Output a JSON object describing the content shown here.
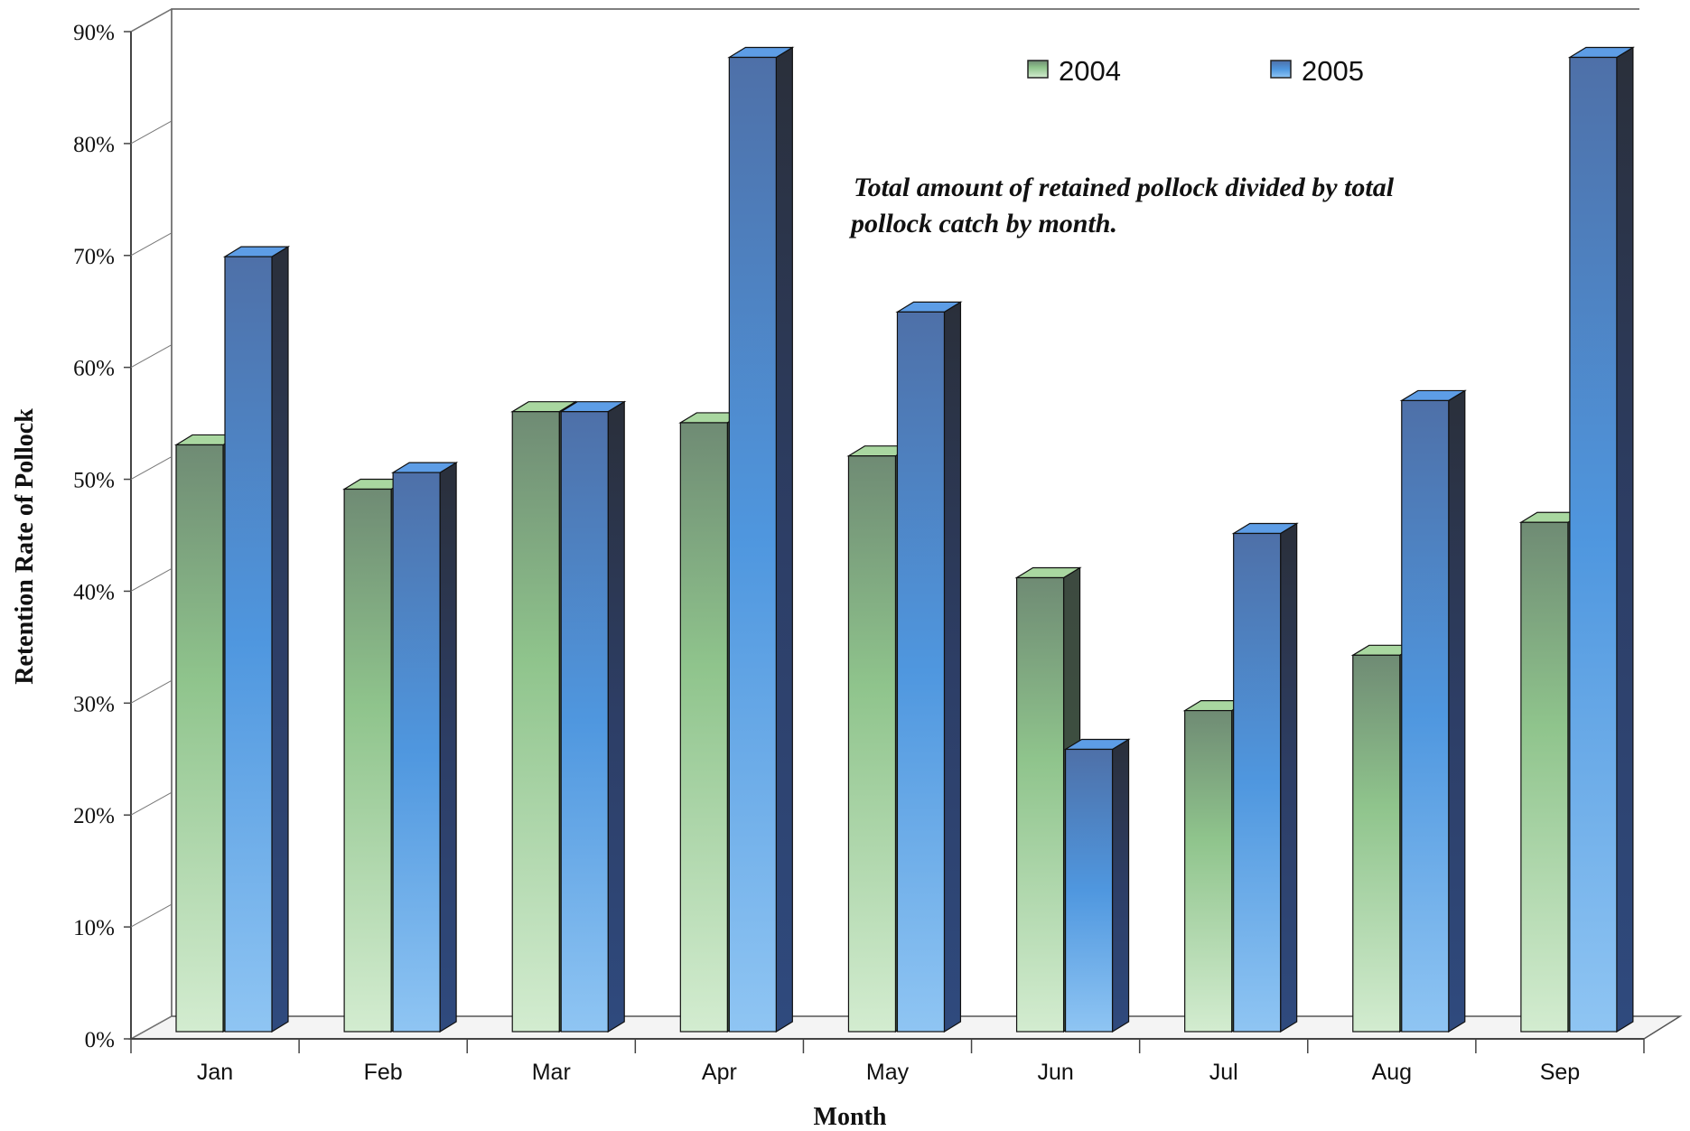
{
  "chart_data": {
    "type": "bar",
    "categories": [
      "Jan",
      "Feb",
      "Mar",
      "Apr",
      "May",
      "Jun",
      "Jul",
      "Aug",
      "Sep"
    ],
    "series": [
      {
        "name": "2004",
        "values": [
          53,
          49,
          56,
          55,
          52,
          41,
          29,
          34,
          46
        ]
      },
      {
        "name": "2005",
        "values": [
          70,
          50.5,
          56,
          88,
          65,
          25.5,
          45,
          57,
          88
        ]
      }
    ],
    "xlabel": "Month",
    "ylabel": "Retention Rate of Pollock",
    "ylim": [
      0,
      90
    ],
    "yticks": [
      "0%",
      "10%",
      "20%",
      "30%",
      "40%",
      "50%",
      "60%",
      "70%",
      "80%",
      "90%"
    ],
    "annotation": [
      "Total amount of retained pollock divided by total",
      "pollock catch by month."
    ],
    "legend_position": "top-right",
    "grid": false,
    "style": "3d-bar",
    "colors": {
      "2004": "#9fd79a",
      "2005": "#4f8fd8"
    }
  }
}
